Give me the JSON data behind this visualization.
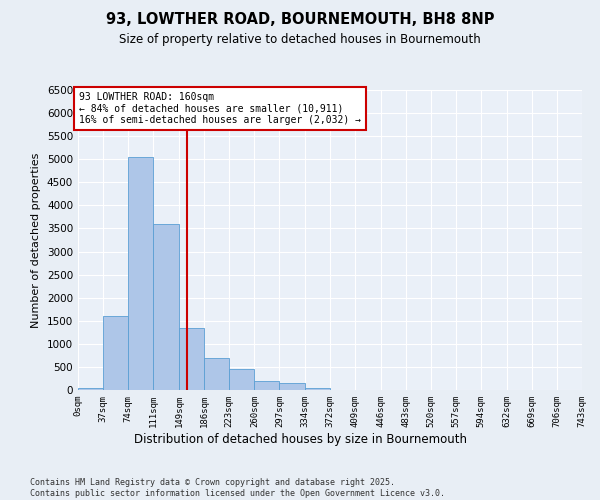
{
  "title": "93, LOWTHER ROAD, BOURNEMOUTH, BH8 8NP",
  "subtitle": "Size of property relative to detached houses in Bournemouth",
  "xlabel": "Distribution of detached houses by size in Bournemouth",
  "ylabel": "Number of detached properties",
  "footer_line1": "Contains HM Land Registry data © Crown copyright and database right 2025.",
  "footer_line2": "Contains public sector information licensed under the Open Government Licence v3.0.",
  "bin_edges": [
    0,
    37,
    74,
    111,
    149,
    186,
    223,
    260,
    297,
    334,
    372,
    409,
    446,
    483,
    520,
    557,
    594,
    632,
    669,
    706,
    743
  ],
  "bar_heights": [
    50,
    1600,
    5050,
    3600,
    1350,
    700,
    450,
    200,
    150,
    50,
    0,
    0,
    0,
    0,
    0,
    0,
    0,
    0,
    0,
    0
  ],
  "bar_color": "#aec6e8",
  "bar_edge_color": "#5a9fd4",
  "property_size": 160,
  "property_label": "93 LOWTHER ROAD: 160sqm",
  "pct_smaller": 84,
  "n_smaller": 10911,
  "pct_larger": 16,
  "n_larger": 2032,
  "vline_color": "#cc0000",
  "annotation_box_color": "#cc0000",
  "ylim": [
    0,
    6500
  ],
  "yticks": [
    0,
    500,
    1000,
    1500,
    2000,
    2500,
    3000,
    3500,
    4000,
    4500,
    5000,
    5500,
    6000,
    6500
  ],
  "bg_color": "#e8eef5",
  "plot_bg_color": "#eaf0f8",
  "grid_color": "#ffffff",
  "tick_labels": [
    "0sqm",
    "37sqm",
    "74sqm",
    "111sqm",
    "149sqm",
    "186sqm",
    "223sqm",
    "260sqm",
    "297sqm",
    "334sqm",
    "372sqm",
    "409sqm",
    "446sqm",
    "483sqm",
    "520sqm",
    "557sqm",
    "594sqm",
    "632sqm",
    "669sqm",
    "706sqm",
    "743sqm"
  ]
}
